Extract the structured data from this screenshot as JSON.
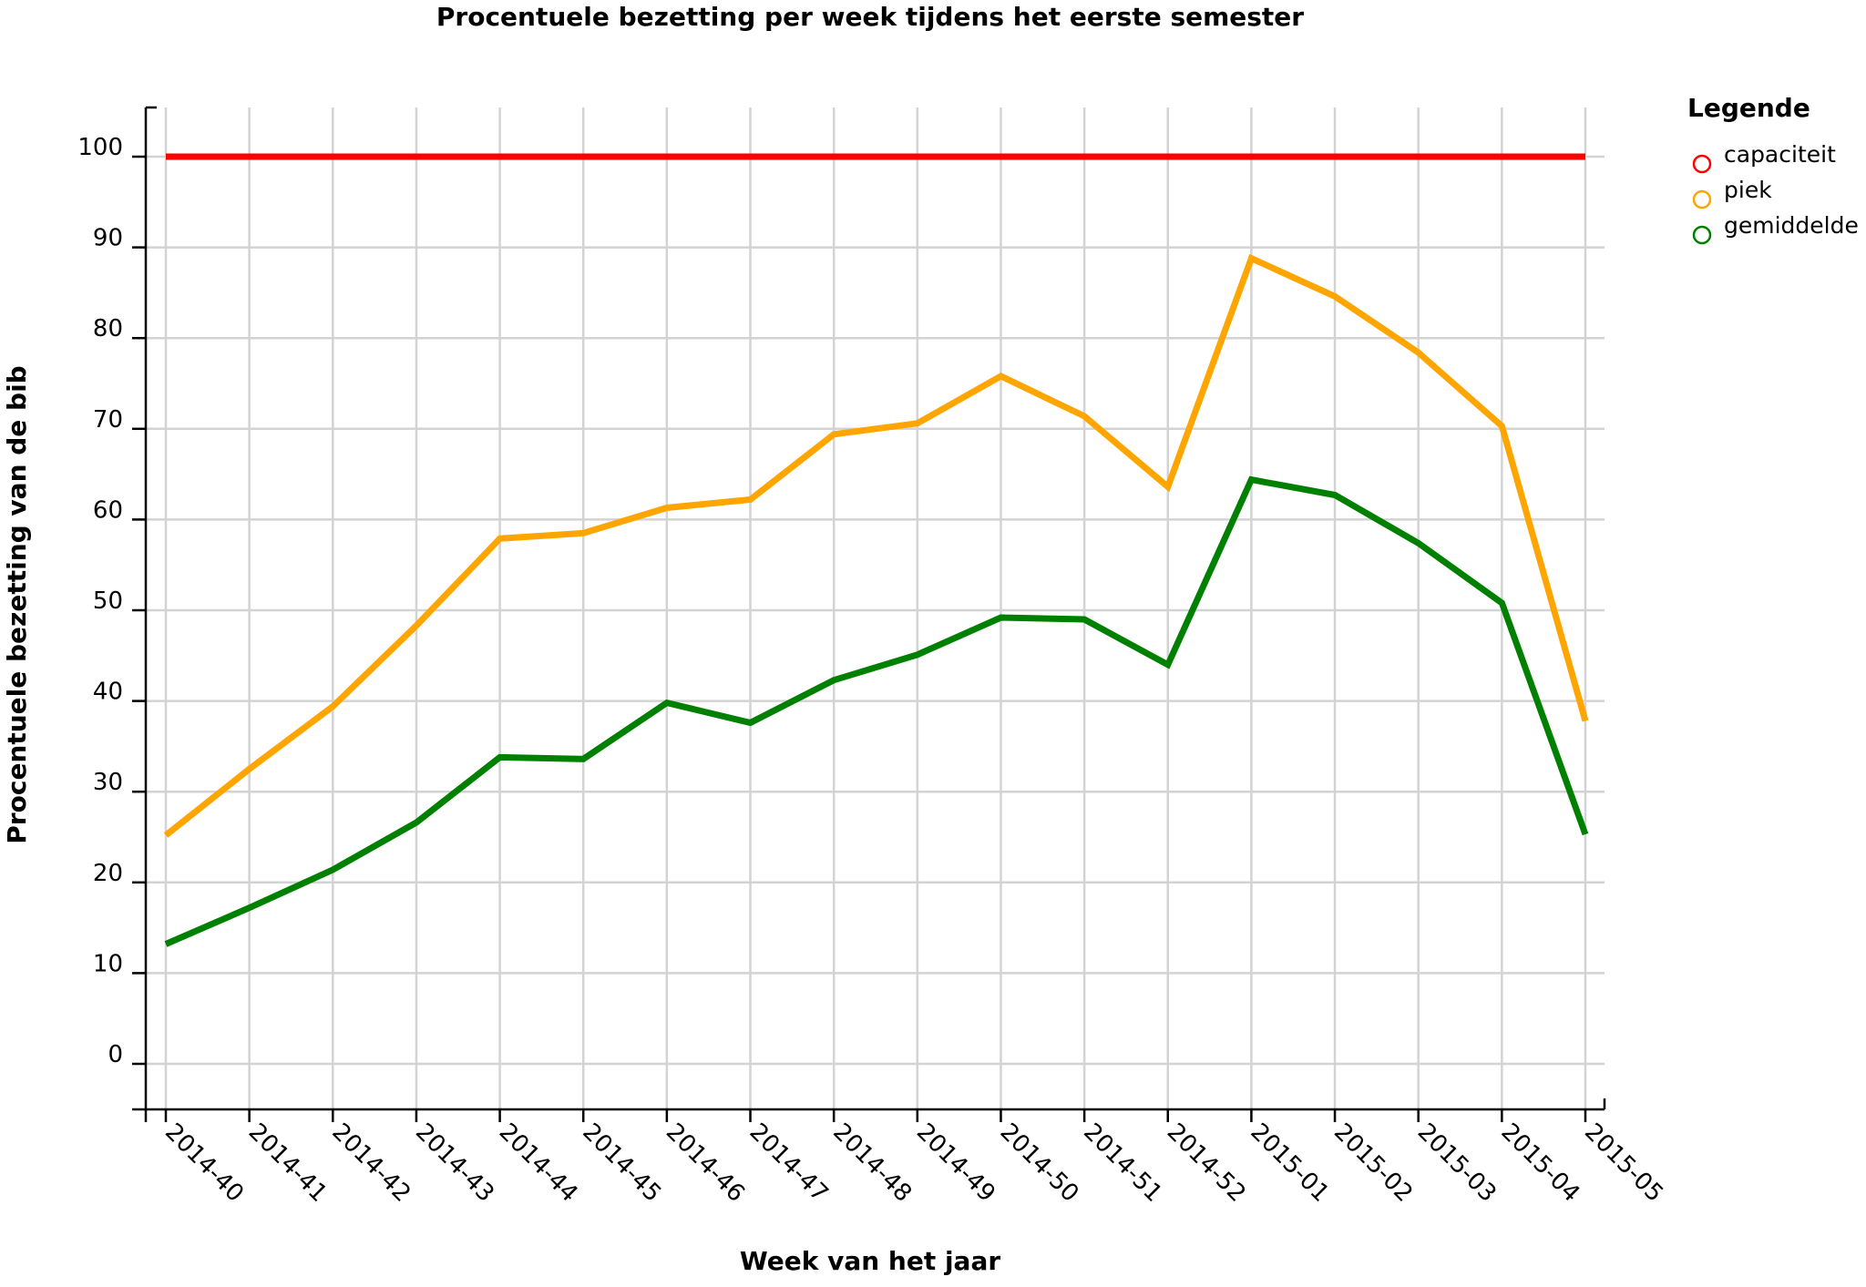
{
  "chart_data": {
    "type": "line",
    "title": "Procentuele bezetting per week tijdens het eerste semester",
    "xlabel": "Week van het jaar",
    "ylabel": "Procentuele bezetting van de bib",
    "categories": [
      "2014-40",
      "2014-41",
      "2014-42",
      "2014-43",
      "2014-44",
      "2014-45",
      "2014-46",
      "2014-47",
      "2014-48",
      "2014-49",
      "2014-50",
      "2014-51",
      "2014-52",
      "2015-01",
      "2015-02",
      "2015-03",
      "2015-04",
      "2015-05"
    ],
    "yticks": [
      0,
      10,
      20,
      30,
      40,
      50,
      60,
      70,
      80,
      90,
      100
    ],
    "ylim": [
      -5,
      105
    ],
    "grid": true,
    "legend": {
      "title": "Legende",
      "placement": "right"
    },
    "series": [
      {
        "name": "capaciteit",
        "color": "#ff0000",
        "values": [
          100,
          100,
          100,
          100,
          100,
          100,
          100,
          100,
          100,
          100,
          100,
          100,
          100,
          100,
          100,
          100,
          100,
          100
        ]
      },
      {
        "name": "piek",
        "color": "#ffa500",
        "values": [
          25.2,
          32.5,
          39.4,
          48.3,
          57.9,
          58.5,
          61.3,
          62.2,
          69.4,
          70.6,
          75.8,
          71.4,
          63.6,
          88.8,
          84.6,
          78.4,
          70.3,
          37.8
        ]
      },
      {
        "name": "gemiddelde",
        "color": "#008000",
        "values": [
          13.2,
          17.2,
          21.4,
          26.6,
          33.8,
          33.6,
          39.8,
          37.6,
          42.3,
          45.1,
          49.2,
          49.0,
          44.0,
          64.4,
          62.7,
          57.4,
          50.8,
          25.3
        ]
      }
    ]
  }
}
